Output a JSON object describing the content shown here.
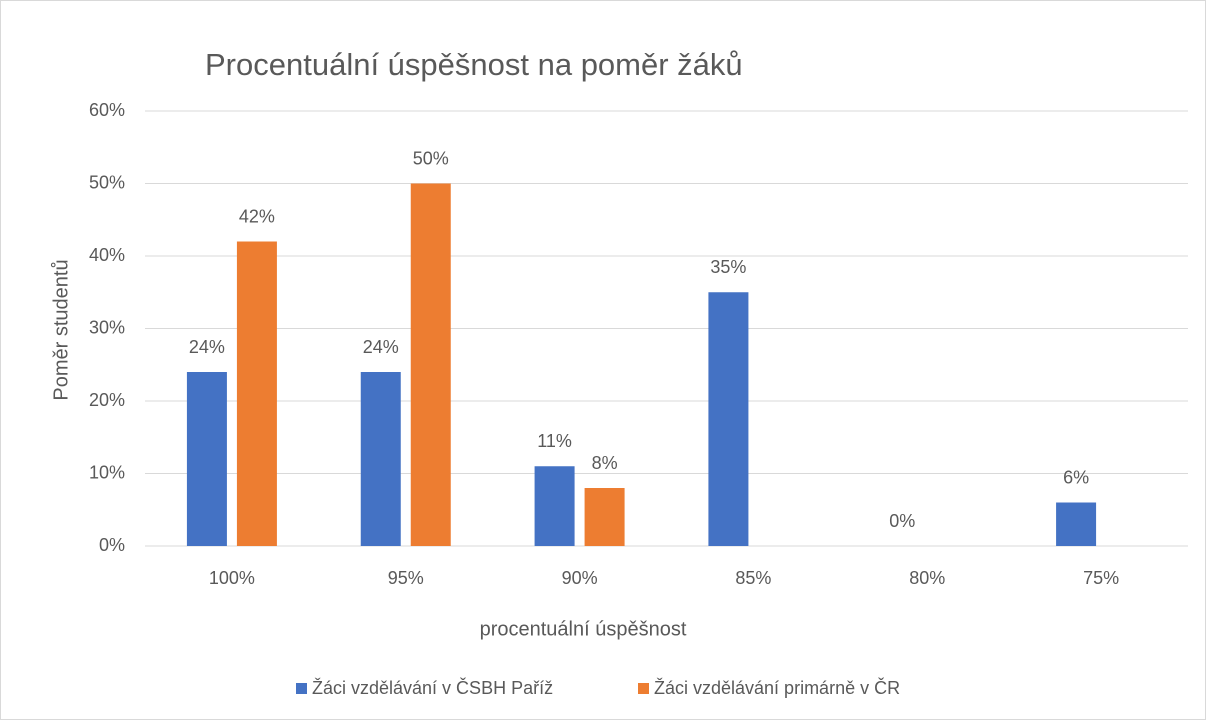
{
  "chart_data": {
    "type": "bar",
    "title": "Procentuální úspěšnost na poměr žáků",
    "x_label": "procentuální úspěšnost",
    "y_label": "Poměr studentů",
    "categories": [
      "100%",
      "95%",
      "90%",
      "85%",
      "80%",
      "75%"
    ],
    "series": [
      {
        "name": "Žáci vzdělávání v ČSBH Paříž",
        "color": "#4472c4",
        "values": [
          24,
          24,
          11,
          35,
          0,
          6
        ],
        "value_labels": [
          "24%",
          "24%",
          "11%",
          "35%",
          "0%",
          "6%"
        ]
      },
      {
        "name": "Žáci vzdělávání primárně v ČR",
        "color": "#ed7d31",
        "values": [
          42,
          50,
          8,
          null,
          null,
          null
        ],
        "value_labels": [
          "42%",
          "50%",
          "8%",
          null,
          null,
          null
        ]
      }
    ],
    "ylim": [
      0,
      60
    ],
    "yticks": [
      {
        "value": 0,
        "label": "0%"
      },
      {
        "value": 10,
        "label": "10%"
      },
      {
        "value": 20,
        "label": "20%"
      },
      {
        "value": 30,
        "label": "30%"
      },
      {
        "value": 40,
        "label": "40%"
      },
      {
        "value": 50,
        "label": "50%"
      },
      {
        "value": 60,
        "label": "60%"
      }
    ],
    "grid": true,
    "legend": "bottom"
  }
}
